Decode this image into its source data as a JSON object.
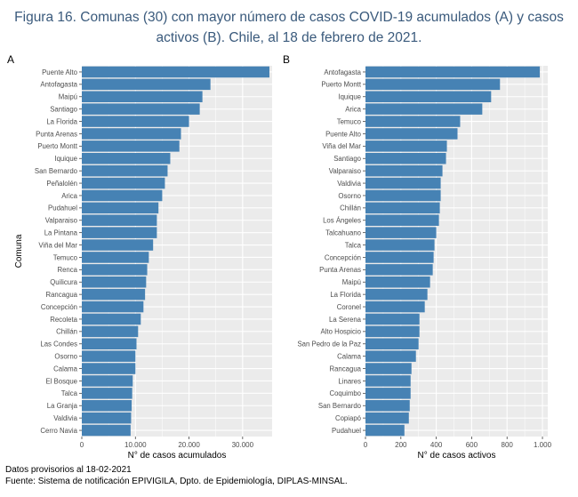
{
  "figure_title_line1": "Figura 16. Comunas (30) con mayor número de casos COVID-19 acumulados (A) y casos",
  "figure_title_line2": "activos (B). Chile, al 18 de febrero de 2021.",
  "footer": {
    "note": "Datos provisorios al 18-02-2021",
    "source": "Fuente: Sistema de notificación EPIVIGILA, Dpto. de Epidemiología, DIPLAS-MINSAL."
  },
  "colors": {
    "bar": "#4682b4",
    "panel": "#ebebeb",
    "grid": "#ffffff"
  },
  "chart_data": [
    {
      "type": "bar",
      "orientation": "horizontal",
      "panel_label": "A",
      "xlabel": "N° de casos acumulados",
      "ylabel": "Comuna",
      "xlim": [
        0,
        35500
      ],
      "xticks": [
        0,
        10000,
        20000,
        30000
      ],
      "xtick_labels": [
        "0",
        "10.000",
        "20.000",
        "30.000"
      ],
      "categories": [
        "Puente Alto",
        "Antofagasta",
        "Maipú",
        "Santiago",
        "La Florida",
        "Punta Arenas",
        "Puerto Montt",
        "Iquique",
        "San Bernardo",
        "Peñalolén",
        "Arica",
        "Pudahuel",
        "Valparaiso",
        "La Pintana",
        "Viña del Mar",
        "Temuco",
        "Renca",
        "Quilicura",
        "Rancagua",
        "Concepción",
        "Recoleta",
        "Chillán",
        "Las Condes",
        "Osorno",
        "Calama",
        "El Bosque",
        "Talca",
        "La Granja",
        "Valdivia",
        "Cerro Navia"
      ],
      "values": [
        35000,
        24000,
        22500,
        22000,
        20000,
        18500,
        18200,
        16500,
        16000,
        15500,
        15000,
        14300,
        14000,
        14000,
        13300,
        12500,
        12200,
        12000,
        11800,
        11500,
        11000,
        10500,
        10200,
        10000,
        10000,
        9500,
        9400,
        9300,
        9200,
        9100
      ]
    },
    {
      "type": "bar",
      "orientation": "horizontal",
      "panel_label": "B",
      "xlabel": "N° de casos activos",
      "ylabel": "",
      "xlim": [
        0,
        1030
      ],
      "xticks": [
        0,
        200,
        400,
        600,
        800,
        1000
      ],
      "xtick_labels": [
        "0",
        "200",
        "400",
        "600",
        "800",
        "1.000"
      ],
      "categories": [
        "Antofagasta",
        "Puerto Montt",
        "Iquique",
        "Arica",
        "Temuco",
        "Puente Alto",
        "Viña del Mar",
        "Santiago",
        "Valparaiso",
        "Valdivia",
        "Osorno",
        "Chillán",
        "Los Ángeles",
        "Talcahuano",
        "Talca",
        "Concepción",
        "Punta Arenas",
        "Maipú",
        "La Florida",
        "Coronel",
        "La Serena",
        "Alto Hospicio",
        "San Pedro de la Paz",
        "Calama",
        "Rancagua",
        "Linares",
        "Coquimbo",
        "San Bernardo",
        "Copiapó",
        "Pudahuel"
      ],
      "values": [
        985,
        760,
        710,
        660,
        535,
        520,
        460,
        455,
        435,
        425,
        425,
        420,
        415,
        400,
        390,
        385,
        380,
        365,
        350,
        335,
        305,
        305,
        300,
        285,
        260,
        255,
        255,
        250,
        245,
        220
      ]
    }
  ]
}
